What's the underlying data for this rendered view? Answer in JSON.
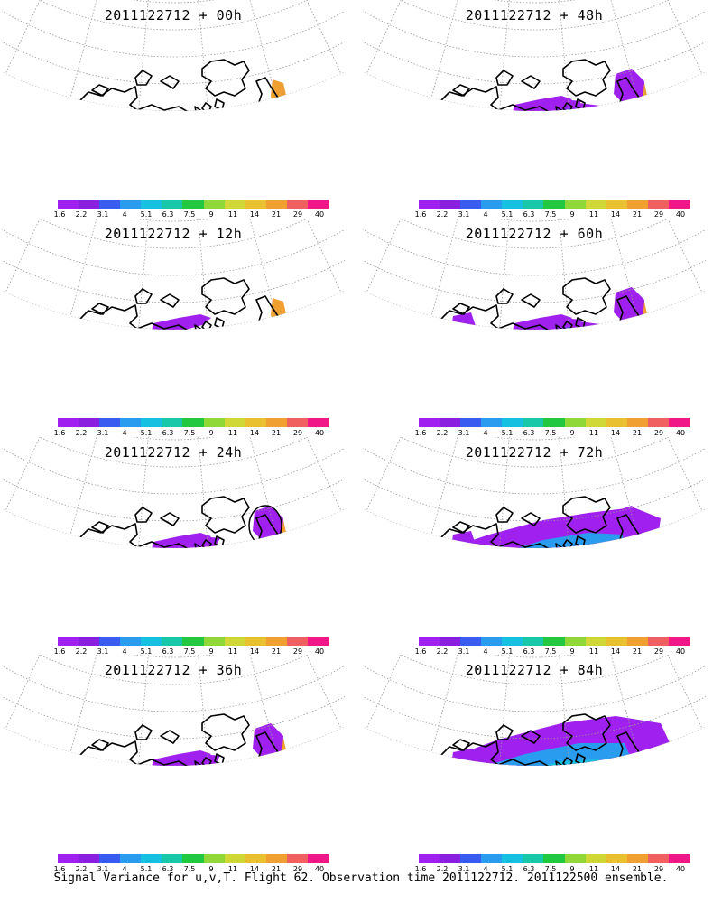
{
  "panels": [
    {
      "title": "2011122712 + 00h",
      "level": 0
    },
    {
      "title": "2011122712 + 48h",
      "level": 4
    },
    {
      "title": "2011122712 + 12h",
      "level": 1
    },
    {
      "title": "2011122712 + 60h",
      "level": 5
    },
    {
      "title": "2011122712 + 24h",
      "level": 2
    },
    {
      "title": "2011122712 + 72h",
      "level": 6
    },
    {
      "title": "2011122712 + 36h",
      "level": 3
    },
    {
      "title": "2011122712 + 84h",
      "level": 7
    }
  ],
  "colorbar": {
    "ticks": [
      "1.6",
      "2.2",
      "3.1",
      "4",
      "5.1",
      "6.3",
      "7.5",
      "9",
      "11",
      "14",
      "21",
      "29",
      "40"
    ],
    "colors": [
      "#a020f0",
      "#8a1fe0",
      "#3a5bf0",
      "#2a9cf0",
      "#16c0e0",
      "#18c8a8",
      "#22c840",
      "#90d838",
      "#d0d838",
      "#e8c030",
      "#f0a030",
      "#f06060",
      "#f01888"
    ]
  },
  "caption": "Signal Variance for u,v,T. Flight 62. Observation time 2011122712. 2011122500 ensemble."
}
